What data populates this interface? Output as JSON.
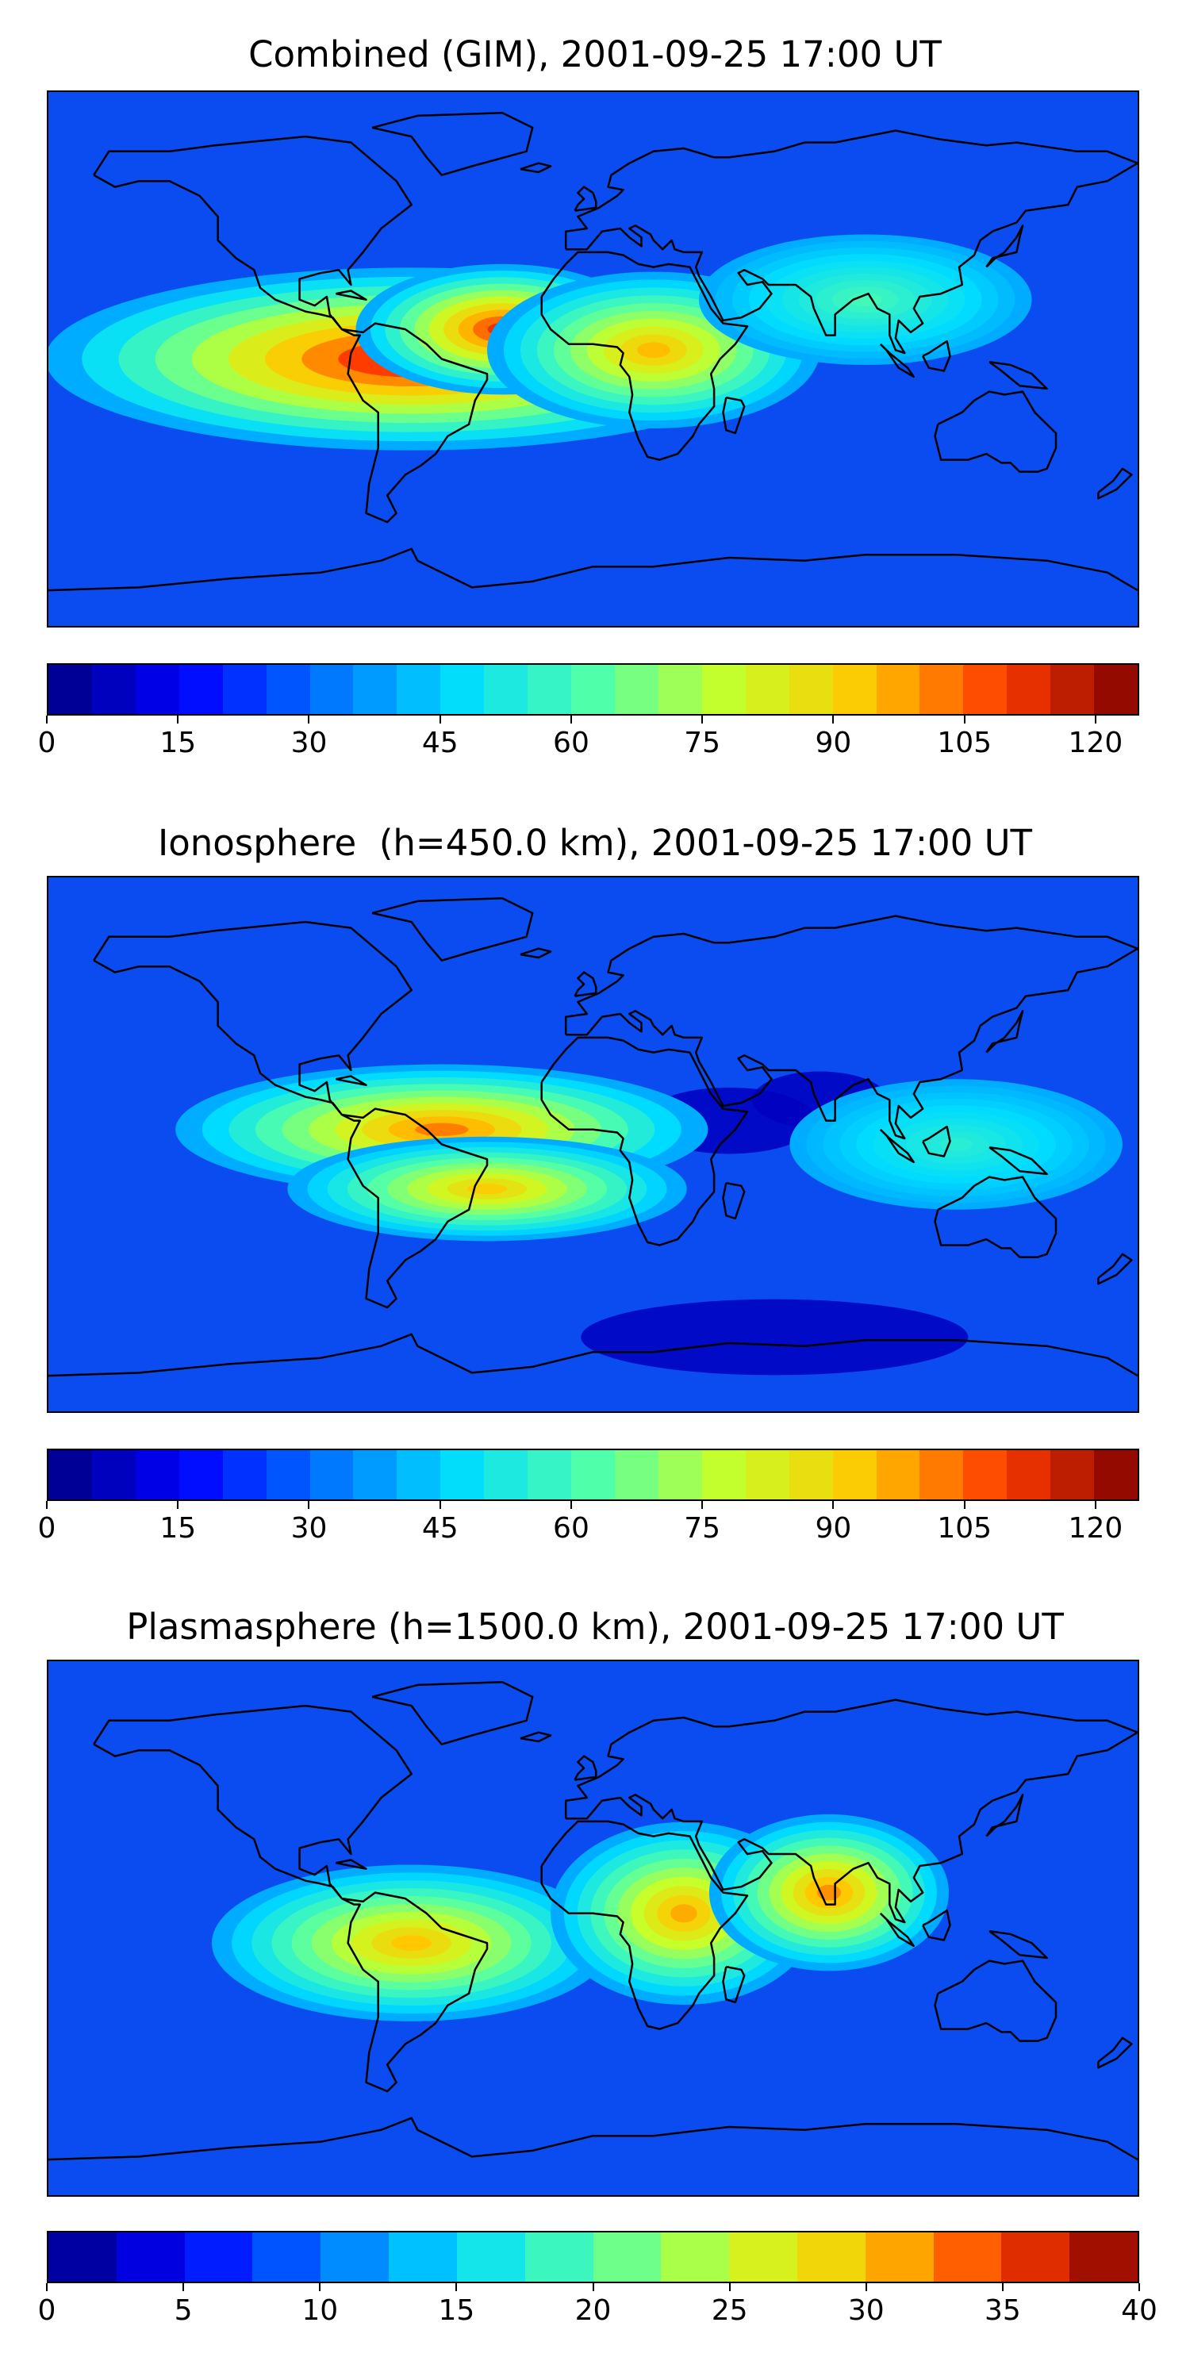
{
  "panels": [
    {
      "title": "Combined (GIM), 2001-09-25 17:00 UT",
      "colorbar": {
        "min": 0,
        "max": 125,
        "step": 5,
        "tick_labels": [
          "0",
          "15",
          "30",
          "45",
          "60",
          "75",
          "90",
          "105",
          "120"
        ]
      },
      "field": {
        "background": "#0a4cf0",
        "blobs": [
          {
            "lon": -60,
            "lat": 0,
            "peak": 118,
            "spread_lon": 55,
            "spread_lat": 14
          },
          {
            "lon": -30,
            "lat": 10,
            "peak": 112,
            "spread_lon": 22,
            "spread_lat": 10
          },
          {
            "lon": 20,
            "lat": 3,
            "peak": 95,
            "spread_lon": 25,
            "spread_lat": 12
          },
          {
            "lon": 90,
            "lat": 20,
            "peak": 60,
            "spread_lon": 25,
            "spread_lat": 10
          }
        ]
      }
    },
    {
      "title": "Ionosphere  (h=450.0 km), 2001-09-25 17:00 UT",
      "colorbar": {
        "min": 0,
        "max": 125,
        "step": 5,
        "tick_labels": [
          "0",
          "15",
          "30",
          "45",
          "60",
          "75",
          "90",
          "105",
          "120"
        ]
      },
      "field": {
        "background": "#0a4cf0",
        "blobs": [
          {
            "lon": -50,
            "lat": 5,
            "peak": 102,
            "spread_lon": 40,
            "spread_lat": 10
          },
          {
            "lon": -35,
            "lat": -15,
            "peak": 92,
            "spread_lon": 30,
            "spread_lat": 8
          },
          {
            "lon": 120,
            "lat": 0,
            "peak": 55,
            "spread_lon": 25,
            "spread_lat": 10
          }
        ],
        "holes": [
          {
            "lon": 45,
            "lat": 8,
            "depth": 40,
            "spread_lon": 18,
            "spread_lat": 7
          },
          {
            "lon": 75,
            "lat": 15,
            "depth": 30,
            "spread_lon": 14,
            "spread_lat": 6
          },
          {
            "lon": 60,
            "lat": -65,
            "depth": 25,
            "spread_lon": 40,
            "spread_lat": 8
          }
        ]
      }
    },
    {
      "title": "Plasmasphere (h=1500.0 km), 2001-09-25 17:00 UT",
      "colorbar": {
        "min": 0,
        "max": 40,
        "step": 2.5,
        "tick_labels": [
          "0",
          "5",
          "10",
          "15",
          "20",
          "25",
          "30",
          "35",
          "40"
        ]
      },
      "field": {
        "background": "#0a4cf0",
        "blobs": [
          {
            "lon": -60,
            "lat": -5,
            "peak": 30,
            "spread_lon": 30,
            "spread_lat": 12
          },
          {
            "lon": 30,
            "lat": 5,
            "peak": 31,
            "spread_lon": 20,
            "spread_lat": 14
          },
          {
            "lon": 78,
            "lat": 12,
            "peak": 32,
            "spread_lon": 18,
            "spread_lat": 12
          }
        ]
      }
    }
  ]
}
